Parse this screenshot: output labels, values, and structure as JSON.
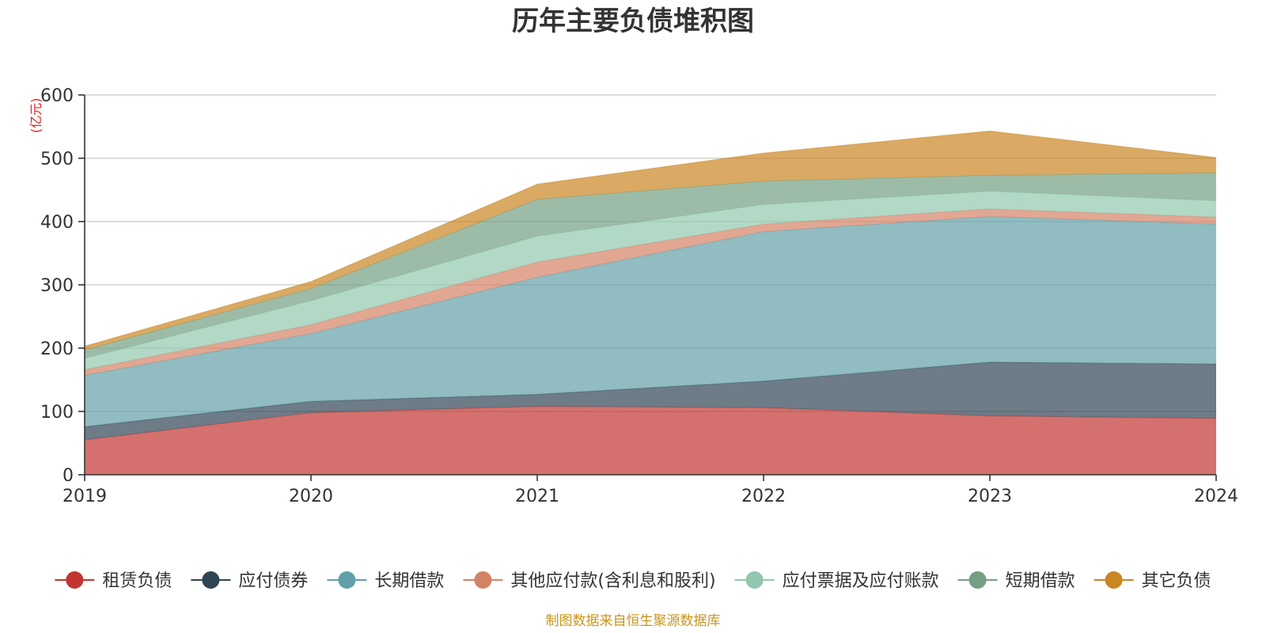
{
  "chart_data": {
    "type": "area",
    "stacked": true,
    "title": "历年主要负债堆积图",
    "unit_label": "(亿元)",
    "source_note": "制图数据来自恒生聚源数据库",
    "x": [
      "2019",
      "2020",
      "2021",
      "2022",
      "2023",
      "2024"
    ],
    "ylim": [
      0,
      600
    ],
    "yticks": [
      0,
      100,
      200,
      300,
      400,
      500,
      600
    ],
    "grid": true,
    "legend_position": "bottom",
    "series": [
      {
        "name": "租赁负债",
        "color": "#c23531",
        "values": [
          55,
          98,
          108,
          106,
          93,
          89
        ]
      },
      {
        "name": "应付债券",
        "color": "#2f4554",
        "values": [
          21,
          18,
          19,
          42,
          85,
          86
        ]
      },
      {
        "name": "长期借款",
        "color": "#61a0a8",
        "values": [
          81,
          107,
          185,
          236,
          230,
          221
        ]
      },
      {
        "name": "其他应付款(含利息和股利)",
        "color": "#d48265",
        "values": [
          9,
          14,
          24,
          12,
          12,
          11
        ]
      },
      {
        "name": "应付票据及应付账款",
        "color": "#91c7ae",
        "values": [
          18,
          38,
          41,
          31,
          28,
          26
        ]
      },
      {
        "name": "短期借款",
        "color": "#749f83",
        "values": [
          13,
          19,
          58,
          37,
          25,
          44
        ]
      },
      {
        "name": "其它负债",
        "color": "#ca8622",
        "values": [
          6,
          11,
          24,
          44,
          70,
          24
        ]
      }
    ]
  }
}
